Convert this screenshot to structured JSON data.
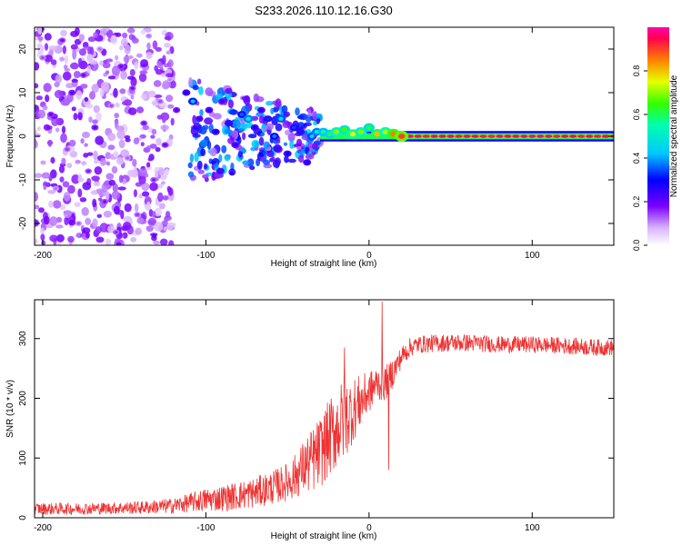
{
  "title": "S233.2026.110.12.16.G30",
  "chart_data": [
    {
      "type": "heatmap",
      "name": "spectrogram",
      "xlabel": "Height of straight line (km)",
      "ylabel": "Frequency (Hz)",
      "xlim": [
        -205,
        150
      ],
      "ylim": [
        -25,
        25
      ],
      "xticks": [
        -200,
        -100,
        0,
        100
      ],
      "yticks": [
        -20,
        -10,
        0,
        10,
        20
      ],
      "colorbar": {
        "label": "Normalized spectral amplitude",
        "range": [
          0,
          1
        ],
        "ticks": [
          0.0,
          0.2,
          0.4,
          0.6,
          0.8
        ]
      },
      "description_regions": [
        {
          "x_range": [
            -205,
            -120
          ],
          "freq_range": [
            -25,
            25
          ],
          "amplitude": [
            0.05,
            0.2
          ]
        },
        {
          "x_range": [
            -110,
            -30
          ],
          "freq_range": [
            -10,
            12
          ],
          "amplitude": [
            0.1,
            0.45
          ]
        },
        {
          "x_range": [
            -30,
            150
          ],
          "freq_range": [
            -1,
            1.5
          ],
          "amplitude": [
            0.5,
            0.95
          ]
        }
      ],
      "blobs": [
        {
          "x": -200,
          "f": 18,
          "a": 0.14
        },
        {
          "x": -195,
          "f": 5,
          "a": 0.2
        },
        {
          "x": -192,
          "f": -12,
          "a": 0.12
        },
        {
          "x": -188,
          "f": 22,
          "a": 0.18
        },
        {
          "x": -185,
          "f": -3,
          "a": 0.15
        },
        {
          "x": -182,
          "f": 10,
          "a": 0.22
        },
        {
          "x": -178,
          "f": -20,
          "a": 0.13
        },
        {
          "x": -175,
          "f": 14,
          "a": 0.19
        },
        {
          "x": -172,
          "f": -8,
          "a": 0.17
        },
        {
          "x": -168,
          "f": 2,
          "a": 0.21
        },
        {
          "x": -165,
          "f": 20,
          "a": 0.12
        },
        {
          "x": -162,
          "f": -15,
          "a": 0.18
        },
        {
          "x": -158,
          "f": 7,
          "a": 0.14
        },
        {
          "x": -155,
          "f": -22,
          "a": 0.16
        },
        {
          "x": -152,
          "f": 16,
          "a": 0.2
        },
        {
          "x": -148,
          "f": -5,
          "a": 0.13
        },
        {
          "x": -145,
          "f": 11,
          "a": 0.18
        },
        {
          "x": -142,
          "f": -18,
          "a": 0.15
        },
        {
          "x": -138,
          "f": 3,
          "a": 0.19
        },
        {
          "x": -135,
          "f": 23,
          "a": 0.12
        },
        {
          "x": -132,
          "f": -10,
          "a": 0.17
        },
        {
          "x": -128,
          "f": 8,
          "a": 0.14
        },
        {
          "x": -125,
          "f": -2,
          "a": 0.2
        },
        {
          "x": -122,
          "f": 13,
          "a": 0.11
        },
        {
          "x": -118,
          "f": 6,
          "a": 0.22
        },
        {
          "x": -112,
          "f": 10,
          "a": 0.3
        },
        {
          "x": -108,
          "f": 8,
          "a": 0.42
        },
        {
          "x": -104,
          "f": 4,
          "a": 0.26
        },
        {
          "x": -98,
          "f": 6,
          "a": 0.28
        },
        {
          "x": -94,
          "f": 1,
          "a": 0.3
        },
        {
          "x": -90,
          "f": 8,
          "a": 0.24
        },
        {
          "x": -86,
          "f": 3,
          "a": 0.32
        },
        {
          "x": -82,
          "f": -2,
          "a": 0.27
        },
        {
          "x": -78,
          "f": 5,
          "a": 0.36
        },
        {
          "x": -74,
          "f": 4,
          "a": 0.5
        },
        {
          "x": -70,
          "f": 2,
          "a": 0.3
        },
        {
          "x": -66,
          "f": 6,
          "a": 0.28
        },
        {
          "x": -62,
          "f": 4,
          "a": 0.33
        },
        {
          "x": -58,
          "f": 0,
          "a": 0.38
        },
        {
          "x": -54,
          "f": 4,
          "a": 0.46
        },
        {
          "x": -50,
          "f": -4,
          "a": 0.3
        },
        {
          "x": -46,
          "f": 2,
          "a": 0.34
        },
        {
          "x": -42,
          "f": 1,
          "a": 0.32
        },
        {
          "x": -38,
          "f": -6,
          "a": 0.3
        },
        {
          "x": -35,
          "f": 0,
          "a": 0.45
        },
        {
          "x": -32,
          "f": 1,
          "a": 0.5
        },
        {
          "x": -28,
          "f": 1,
          "a": 0.55
        },
        {
          "x": -24,
          "f": 0.5,
          "a": 0.6
        },
        {
          "x": -20,
          "f": 1,
          "a": 0.7
        },
        {
          "x": -15,
          "f": 1.5,
          "a": 0.65
        },
        {
          "x": -10,
          "f": 0.5,
          "a": 0.75
        },
        {
          "x": -5,
          "f": 1,
          "a": 0.7
        },
        {
          "x": 0,
          "f": 2,
          "a": 0.62
        },
        {
          "x": 5,
          "f": 0.5,
          "a": 0.8
        },
        {
          "x": 10,
          "f": 1,
          "a": 0.72
        },
        {
          "x": 15,
          "f": 0.5,
          "a": 0.85
        },
        {
          "x": 20,
          "f": 0,
          "a": 0.9
        }
      ]
    },
    {
      "type": "line",
      "name": "snr",
      "xlabel": "Height of straight line (km)",
      "ylabel": "SNR (10 * v/v)",
      "xlim": [
        -205,
        150
      ],
      "ylim": [
        0,
        365
      ],
      "xticks": [
        -200,
        -100,
        0,
        100
      ],
      "yticks": [
        0,
        100,
        200,
        300
      ],
      "color": "#ee3333",
      "series": [
        {
          "name": "SNR",
          "x": [
            -205,
            -180,
            -160,
            -140,
            -120,
            -110,
            -100,
            -90,
            -80,
            -70,
            -60,
            -50,
            -45,
            -40,
            -35,
            -30,
            -25,
            -20,
            -15,
            -10,
            -5,
            0,
            5,
            10,
            15,
            20,
            25,
            30,
            40,
            50,
            60,
            80,
            100,
            120,
            140,
            150
          ],
          "y": [
            15,
            15,
            16,
            17,
            20,
            25,
            30,
            33,
            37,
            42,
            50,
            60,
            70,
            85,
            95,
            110,
            130,
            150,
            165,
            180,
            195,
            210,
            225,
            225,
            245,
            270,
            285,
            290,
            292,
            293,
            293,
            290,
            290,
            288,
            285,
            285
          ],
          "noise": [
            10,
            10,
            10,
            11,
            13,
            16,
            20,
            22,
            24,
            26,
            28,
            32,
            38,
            45,
            55,
            60,
            65,
            70,
            70,
            55,
            45,
            35,
            30,
            30,
            25,
            18,
            16,
            15,
            15,
            15,
            15,
            14,
            14,
            14,
            14,
            14
          ]
        }
      ],
      "spikes": [
        {
          "x": -15,
          "y": 285
        },
        {
          "x": 8,
          "y": 362
        },
        {
          "x": 12,
          "y": 80
        }
      ]
    }
  ]
}
